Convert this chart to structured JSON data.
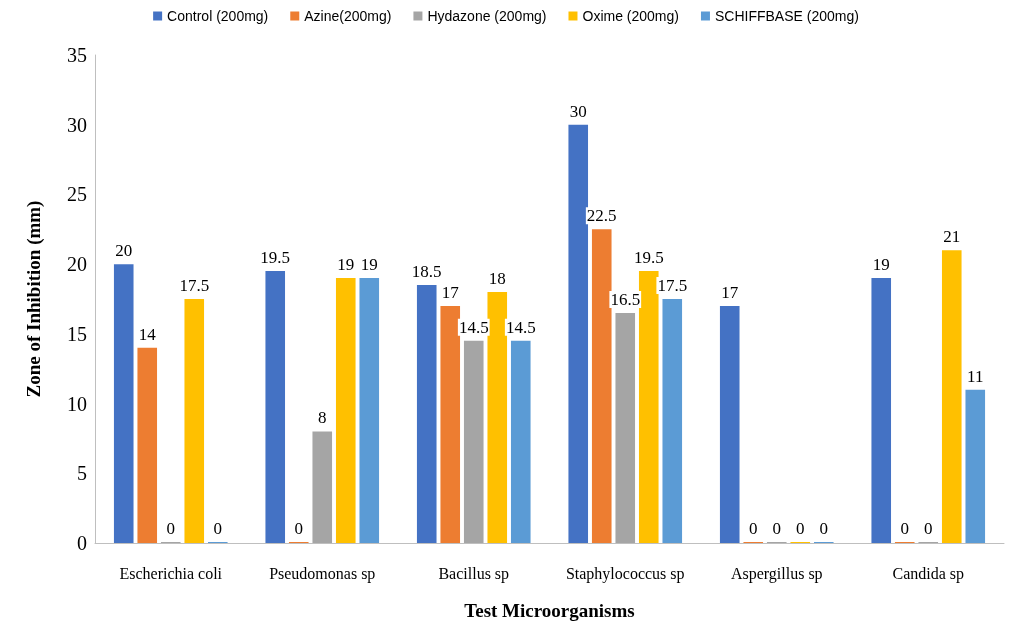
{
  "chart_data": {
    "type": "bar",
    "xlabel": "Test Microorganisms",
    "ylabel": "Zone of Inhibition (mm)",
    "categories": [
      "Escherichia coli",
      "Pseudomonas sp",
      "Bacillus sp",
      "Staphylococcus sp",
      "Aspergillus sp",
      "Candida sp"
    ],
    "series": [
      {
        "name": "Control (200mg)",
        "color": "#4472c4",
        "values": [
          20,
          19.5,
          18.5,
          30,
          17,
          19
        ]
      },
      {
        "name": "Azine(200mg)",
        "color": "#ed7d31",
        "values": [
          14,
          0,
          17,
          22.5,
          0,
          0
        ]
      },
      {
        "name": "Hydazone (200mg)",
        "color": "#a5a5a5",
        "values": [
          0,
          8,
          14.5,
          16.5,
          0,
          0
        ]
      },
      {
        "name": "Oxime (200mg)",
        "color": "#ffc000",
        "values": [
          17.5,
          19,
          18,
          19.5,
          0,
          21
        ]
      },
      {
        "name": "SCHIFFBASE (200mg)",
        "color": "#5b9bd5",
        "values": [
          0,
          19,
          14.5,
          17.5,
          0,
          11
        ]
      }
    ],
    "ylim": [
      0,
      35
    ],
    "yticks": [
      0,
      5,
      10,
      15,
      20,
      25,
      30,
      35
    ],
    "grid": false,
    "legend": "top",
    "data_labels": true
  }
}
